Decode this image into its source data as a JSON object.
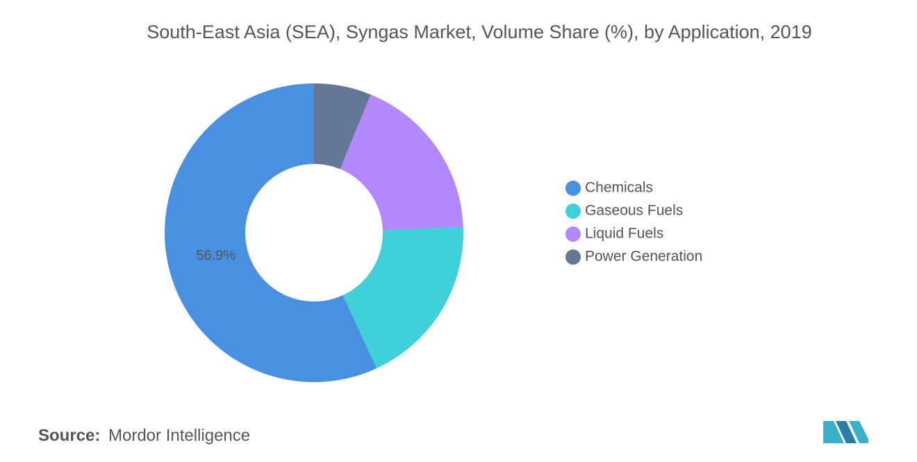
{
  "chart_data": {
    "type": "donut",
    "title": "South-East Asia (SEA), Syngas Market, Volume Share (%), by Application, 2019",
    "categories": [
      "Chemicals",
      "Gaseous Fuels",
      "Liquid Fuels",
      "Power Generation"
    ],
    "values": [
      56.9,
      18.7,
      18.2,
      6.2
    ],
    "value_labels": [
      "56.9%",
      null,
      null,
      null
    ],
    "colors": [
      "#4a90e2",
      "#40d0da",
      "#b388ff",
      "#637796"
    ],
    "legend": "right"
  },
  "source": {
    "label": "Source:",
    "text": "Mordor Intelligence"
  }
}
